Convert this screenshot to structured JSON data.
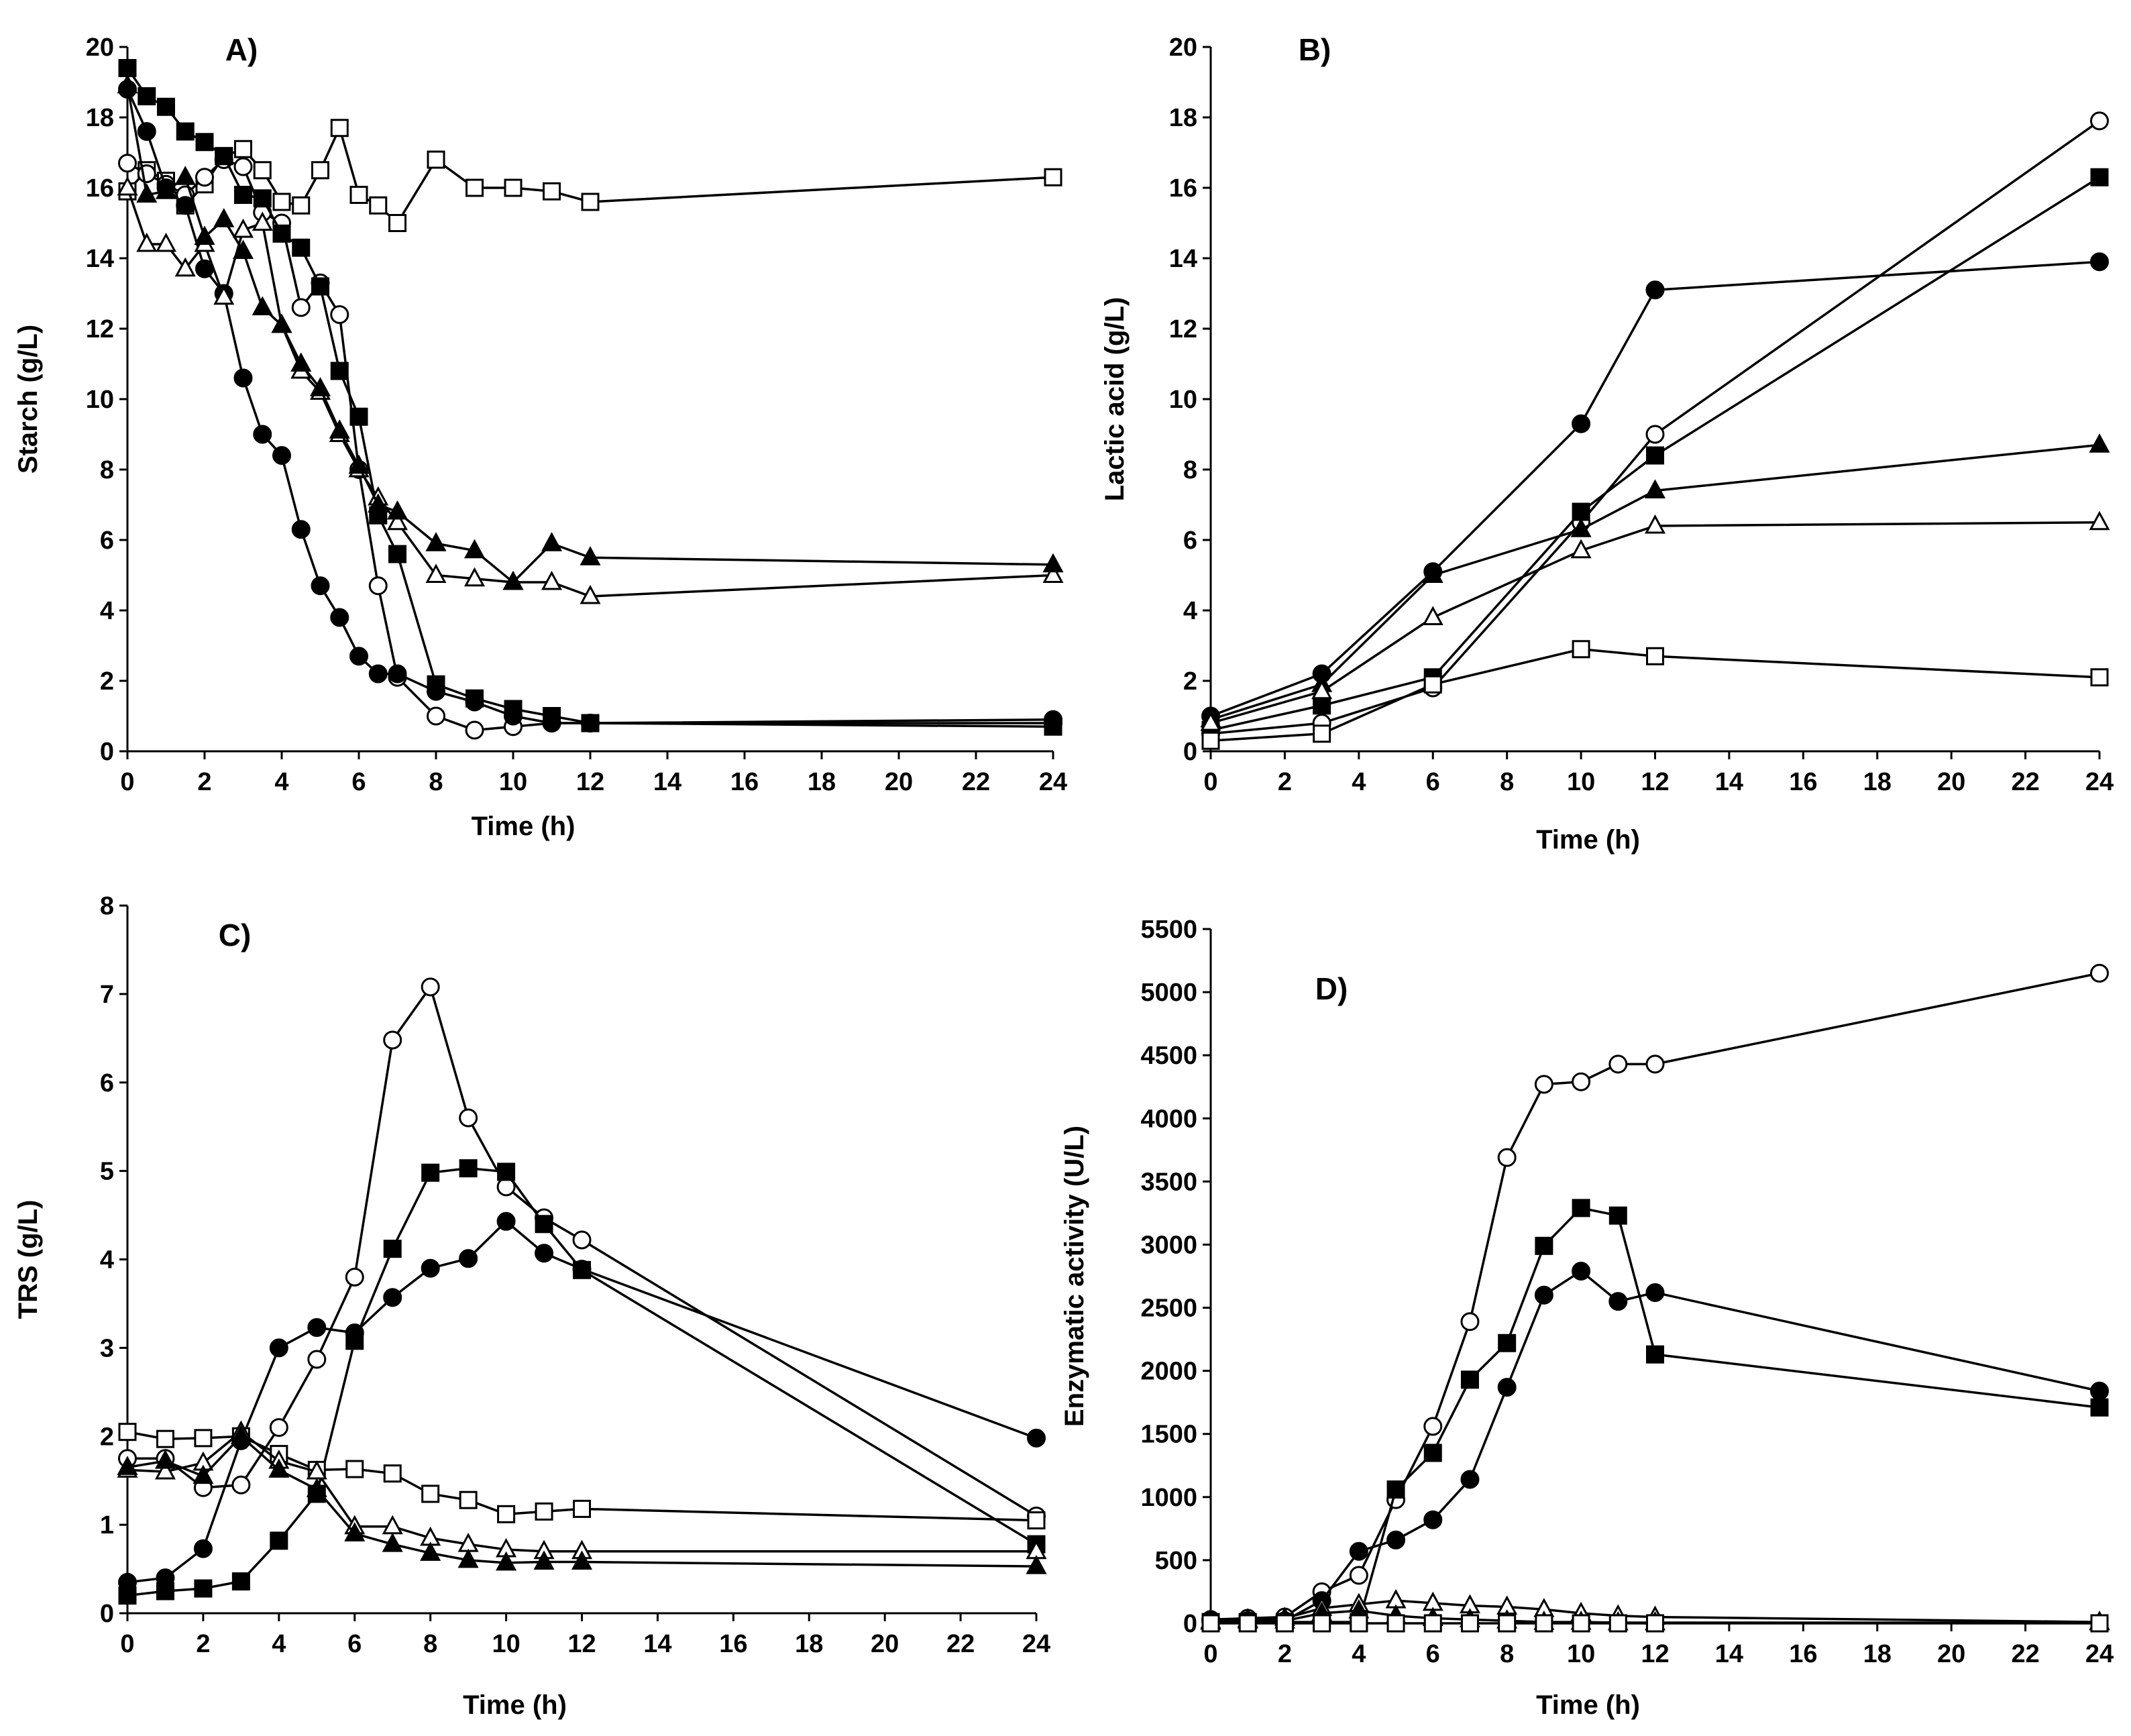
{
  "chart_data": [
    {
      "type": "line",
      "panel": "A)",
      "title": "A)",
      "xlabel": "Time (h)",
      "ylabel": "Starch (g/L)",
      "xlim": [
        0,
        24
      ],
      "ylim": [
        0,
        20
      ],
      "xticks": [
        0,
        2,
        4,
        6,
        8,
        10,
        12,
        14,
        16,
        18,
        20,
        22,
        24
      ],
      "yticks": [
        0,
        2,
        4,
        6,
        8,
        10,
        12,
        14,
        16,
        18,
        20
      ],
      "grid": false,
      "series": [
        {
          "name": "open-square",
          "marker": "square-open",
          "x": [
            0,
            0.5,
            1,
            1.5,
            2,
            2.5,
            3,
            3.5,
            4,
            4.5,
            5,
            5.5,
            6,
            6.5,
            7,
            8,
            9,
            10,
            11,
            12,
            24
          ],
          "y": [
            15.9,
            16.5,
            16.2,
            15.5,
            16.1,
            16.9,
            17.1,
            16.5,
            15.6,
            15.5,
            16.5,
            17.7,
            15.8,
            15.5,
            15.0,
            16.8,
            16.0,
            16.0,
            15.9,
            15.6,
            16.3
          ]
        },
        {
          "name": "open-circle",
          "marker": "circle-open",
          "x": [
            0,
            0.5,
            1,
            1.5,
            2,
            2.5,
            3,
            3.5,
            4,
            4.5,
            5,
            5.5,
            6,
            6.5,
            7,
            8,
            9,
            10,
            11,
            12,
            24
          ],
          "y": [
            16.7,
            16.4,
            16.1,
            15.8,
            16.3,
            16.8,
            16.6,
            15.3,
            15.0,
            12.6,
            13.3,
            12.4,
            8.0,
            4.7,
            2.1,
            1.0,
            0.6,
            0.7,
            0.8,
            0.8,
            0.8
          ]
        },
        {
          "name": "filled-square",
          "marker": "square-filled",
          "x": [
            0,
            0.5,
            1,
            1.5,
            2,
            2.5,
            3,
            3.5,
            4,
            4.5,
            5,
            5.5,
            6,
            6.5,
            7,
            8,
            9,
            10,
            11,
            12,
            24
          ],
          "y": [
            19.4,
            18.6,
            18.3,
            17.6,
            17.3,
            16.9,
            15.8,
            15.7,
            14.7,
            14.3,
            13.2,
            10.8,
            9.5,
            6.7,
            5.6,
            1.9,
            1.5,
            1.2,
            1.0,
            0.8,
            0.7
          ]
        },
        {
          "name": "filled-circle",
          "marker": "circle-filled",
          "x": [
            0,
            0.5,
            1,
            1.5,
            2,
            2.5,
            3,
            3.5,
            4,
            4.5,
            5,
            5.5,
            6,
            6.5,
            7,
            8,
            9,
            10,
            11,
            12,
            24
          ],
          "y": [
            18.8,
            17.6,
            16.0,
            15.5,
            13.7,
            13.0,
            10.6,
            9.0,
            8.4,
            6.3,
            4.7,
            3.8,
            2.7,
            2.2,
            2.2,
            1.7,
            1.4,
            1.0,
            0.8,
            0.8,
            0.9
          ]
        },
        {
          "name": "open-triangle",
          "marker": "triangle-open",
          "x": [
            0,
            0.5,
            1,
            1.5,
            2,
            2.5,
            3,
            3.5,
            4,
            4.5,
            5,
            5.5,
            6,
            6.5,
            7,
            8,
            9,
            10,
            11,
            12,
            24
          ],
          "y": [
            16.0,
            14.4,
            14.4,
            13.7,
            14.4,
            12.9,
            14.8,
            15.0,
            12.1,
            10.8,
            10.2,
            9.0,
            8.0,
            7.2,
            6.5,
            5.0,
            4.9,
            4.8,
            4.8,
            4.4,
            5.0
          ]
        },
        {
          "name": "filled-triangle",
          "marker": "triangle-filled",
          "x": [
            0,
            0.5,
            1,
            1.5,
            2,
            2.5,
            3,
            3.5,
            4,
            4.5,
            5,
            5.5,
            6,
            6.5,
            7,
            8,
            9,
            10,
            11,
            12,
            24
          ],
          "y": [
            18.9,
            15.8,
            15.9,
            16.3,
            14.6,
            15.1,
            14.2,
            12.6,
            12.1,
            11.0,
            10.3,
            9.1,
            8.1,
            7.0,
            6.8,
            5.9,
            5.7,
            4.8,
            5.9,
            5.5,
            5.3
          ]
        }
      ]
    },
    {
      "type": "line",
      "panel": "B)",
      "title": "B)",
      "xlabel": "Time (h)",
      "ylabel": "Lactic acid (g/L)",
      "xlim": [
        0,
        24
      ],
      "ylim": [
        0,
        20
      ],
      "xticks": [
        0,
        2,
        4,
        6,
        8,
        10,
        12,
        14,
        16,
        18,
        20,
        22,
        24
      ],
      "yticks": [
        0,
        2,
        4,
        6,
        8,
        10,
        12,
        14,
        16,
        18,
        20
      ],
      "grid": false,
      "series": [
        {
          "name": "open-circle",
          "marker": "circle-open",
          "x": [
            0,
            3,
            6,
            10,
            12,
            24
          ],
          "y": [
            0.5,
            0.8,
            1.8,
            6.5,
            9.0,
            17.9
          ]
        },
        {
          "name": "filled-square",
          "marker": "square-filled",
          "x": [
            0,
            3,
            6,
            10,
            12,
            24
          ],
          "y": [
            0.6,
            1.3,
            2.1,
            6.8,
            8.4,
            16.3
          ]
        },
        {
          "name": "filled-circle",
          "marker": "circle-filled",
          "x": [
            0,
            3,
            6,
            10,
            12,
            24
          ],
          "y": [
            1.0,
            2.2,
            5.1,
            9.3,
            13.1,
            13.9
          ]
        },
        {
          "name": "filled-triangle",
          "marker": "triangle-filled",
          "x": [
            0,
            3,
            6,
            10,
            12,
            24
          ],
          "y": [
            0.9,
            1.9,
            5.0,
            6.3,
            7.4,
            8.7
          ]
        },
        {
          "name": "open-triangle",
          "marker": "triangle-open",
          "x": [
            0,
            3,
            6,
            10,
            12,
            24
          ],
          "y": [
            0.8,
            1.7,
            3.8,
            5.7,
            6.4,
            6.5
          ]
        },
        {
          "name": "open-square",
          "marker": "square-open",
          "x": [
            0,
            3,
            6,
            10,
            12,
            24
          ],
          "y": [
            0.3,
            0.5,
            1.9,
            2.9,
            2.7,
            2.1
          ]
        }
      ]
    },
    {
      "type": "line",
      "panel": "C)",
      "title": "C)",
      "xlabel": "Time (h)",
      "ylabel": "TRS (g/L)",
      "xlim": [
        0,
        24
      ],
      "ylim": [
        0,
        8
      ],
      "xticks": [
        0,
        2,
        4,
        6,
        8,
        10,
        12,
        14,
        16,
        18,
        20,
        22,
        24
      ],
      "yticks": [
        0,
        1,
        2,
        3,
        4,
        5,
        6,
        7,
        8
      ],
      "grid": false,
      "series": [
        {
          "name": "open-circle",
          "marker": "circle-open",
          "x": [
            0,
            1,
            2,
            3,
            4,
            5,
            6,
            7,
            8,
            9,
            10,
            11,
            12,
            24
          ],
          "y": [
            1.75,
            1.75,
            1.42,
            1.45,
            2.1,
            2.87,
            3.8,
            6.48,
            7.08,
            5.6,
            4.82,
            4.47,
            4.22,
            1.1
          ]
        },
        {
          "name": "filled-square",
          "marker": "square-filled",
          "x": [
            0,
            1,
            2,
            3,
            4,
            5,
            6,
            7,
            8,
            9,
            10,
            11,
            12,
            24
          ],
          "y": [
            0.2,
            0.25,
            0.28,
            0.36,
            0.82,
            1.35,
            3.08,
            4.12,
            4.98,
            5.03,
            4.99,
            4.4,
            3.88,
            0.78
          ]
        },
        {
          "name": "filled-circle",
          "marker": "circle-filled",
          "x": [
            0,
            1,
            2,
            3,
            4,
            5,
            6,
            7,
            8,
            9,
            10,
            11,
            12,
            24
          ],
          "y": [
            0.35,
            0.4,
            0.73,
            1.95,
            3.0,
            3.23,
            3.17,
            3.57,
            3.9,
            4.01,
            4.43,
            4.07,
            3.89,
            1.98
          ]
        },
        {
          "name": "open-square",
          "marker": "square-open",
          "x": [
            0,
            1,
            2,
            3,
            4,
            5,
            6,
            7,
            8,
            9,
            10,
            11,
            12,
            24
          ],
          "y": [
            2.05,
            1.97,
            1.98,
            2.0,
            1.8,
            1.62,
            1.63,
            1.58,
            1.35,
            1.28,
            1.12,
            1.15,
            1.18,
            1.05
          ]
        },
        {
          "name": "open-triangle",
          "marker": "triangle-open",
          "x": [
            0,
            1,
            2,
            3,
            4,
            5,
            6,
            7,
            8,
            9,
            10,
            11,
            12,
            24
          ],
          "y": [
            1.62,
            1.6,
            1.7,
            2.05,
            1.72,
            1.6,
            0.98,
            0.98,
            0.85,
            0.78,
            0.72,
            0.7,
            0.7,
            0.7
          ]
        },
        {
          "name": "filled-triangle",
          "marker": "triangle-filled",
          "x": [
            0,
            1,
            2,
            3,
            4,
            5,
            6,
            7,
            8,
            9,
            10,
            11,
            12,
            24
          ],
          "y": [
            1.65,
            1.72,
            1.55,
            2.0,
            1.62,
            1.4,
            0.9,
            0.78,
            0.68,
            0.6,
            0.57,
            0.58,
            0.58,
            0.53
          ]
        }
      ]
    },
    {
      "type": "line",
      "panel": "D)",
      "title": "D)",
      "xlabel": "Time (h)",
      "ylabel": "Enzymatic activity (U/L)",
      "xlim": [
        0,
        24
      ],
      "ylim": [
        0,
        5500
      ],
      "xticks": [
        0,
        2,
        4,
        6,
        8,
        10,
        12,
        14,
        16,
        18,
        20,
        22,
        24
      ],
      "yticks": [
        0,
        500,
        1000,
        1500,
        2000,
        2500,
        3000,
        3500,
        4000,
        4500,
        5000,
        5500
      ],
      "grid": false,
      "series": [
        {
          "name": "open-circle",
          "marker": "circle-open",
          "x": [
            0,
            1,
            2,
            3,
            4,
            5,
            6,
            7,
            8,
            9,
            10,
            11,
            12,
            24
          ],
          "y": [
            30,
            40,
            50,
            250,
            380,
            980,
            1560,
            2390,
            3690,
            4270,
            4290,
            4430,
            4430,
            5150
          ]
        },
        {
          "name": "filled-square",
          "marker": "square-filled",
          "x": [
            0,
            1,
            2,
            3,
            4,
            5,
            6,
            7,
            8,
            9,
            10,
            11,
            12,
            24
          ],
          "y": [
            10,
            10,
            10,
            10,
            10,
            1060,
            1350,
            1930,
            2220,
            2990,
            3290,
            3230,
            2130,
            1710
          ]
        },
        {
          "name": "filled-circle",
          "marker": "circle-filled",
          "x": [
            0,
            1,
            2,
            3,
            4,
            5,
            6,
            7,
            8,
            9,
            10,
            11,
            12,
            24
          ],
          "y": [
            20,
            20,
            20,
            180,
            570,
            660,
            820,
            1140,
            1870,
            2600,
            2790,
            2550,
            2620,
            1840
          ]
        },
        {
          "name": "open-triangle",
          "marker": "triangle-open",
          "x": [
            0,
            1,
            2,
            3,
            4,
            5,
            6,
            7,
            8,
            9,
            10,
            11,
            12,
            24
          ],
          "y": [
            20,
            30,
            40,
            120,
            150,
            180,
            160,
            140,
            130,
            110,
            80,
            60,
            50,
            10
          ]
        },
        {
          "name": "filled-triangle",
          "marker": "triangle-filled",
          "x": [
            0,
            1,
            2,
            3,
            4,
            5,
            6,
            7,
            8,
            9,
            10,
            11,
            12,
            24
          ],
          "y": [
            10,
            20,
            20,
            80,
            100,
            60,
            40,
            30,
            20,
            10,
            10,
            5,
            5,
            5
          ]
        },
        {
          "name": "open-square",
          "marker": "square-open",
          "x": [
            0,
            1,
            2,
            3,
            4,
            5,
            6,
            7,
            8,
            9,
            10,
            11,
            12,
            24
          ],
          "y": [
            0,
            0,
            0,
            0,
            0,
            0,
            0,
            0,
            0,
            0,
            0,
            0,
            0,
            0
          ]
        }
      ]
    }
  ]
}
